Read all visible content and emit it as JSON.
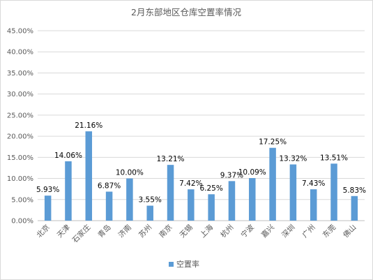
{
  "chart_data": {
    "type": "bar",
    "title": "2月东部地区仓库空置率情况",
    "categories": [
      "北京",
      "天津",
      "石家庄",
      "青岛",
      "济南",
      "苏州",
      "南京",
      "无锡",
      "上海",
      "杭州",
      "宁波",
      "嘉兴",
      "深圳",
      "广州",
      "东莞",
      "佛山"
    ],
    "series": [
      {
        "name": "空置率",
        "values": [
          5.93,
          14.06,
          21.16,
          6.87,
          10.0,
          3.55,
          13.21,
          7.42,
          6.25,
          9.37,
          10.09,
          17.25,
          13.32,
          7.43,
          13.51,
          5.83
        ],
        "labels": [
          "5.93%",
          "14.06%",
          "21.16%",
          "6.87%",
          "10.00%",
          "3.55%",
          "13.21%",
          "7.42%",
          "6.25%",
          "9.37%",
          "10.09%",
          "17.25%",
          "13.32%",
          "7.43%",
          "13.51%",
          "5.83%"
        ],
        "color": "#5b9bd5"
      }
    ],
    "ylim": [
      0,
      45
    ],
    "yticks": [
      "0.00%",
      "5.00%",
      "10.00%",
      "15.00%",
      "20.00%",
      "25.00%",
      "30.00%",
      "35.00%",
      "40.00%",
      "45.00%"
    ],
    "grid": true,
    "legend": "bottom"
  }
}
